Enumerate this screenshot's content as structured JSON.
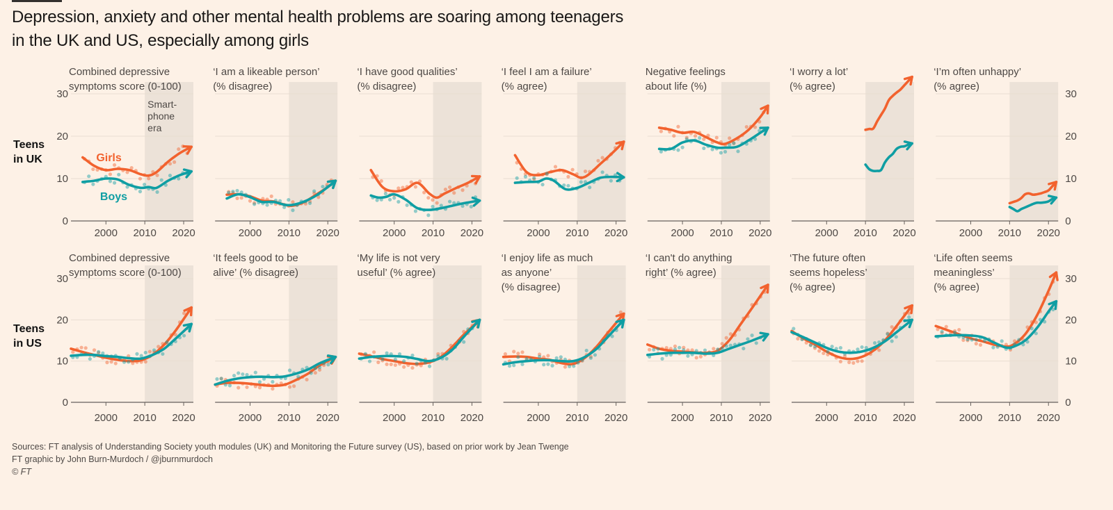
{
  "header": {
    "title": "Depression, anxiety and other mental health problems are soaring among teenagers in the UK and US, especially among girls"
  },
  "rows": [
    {
      "label_line1": "Teens",
      "label_line2": "in UK"
    },
    {
      "label_line1": "Teens",
      "label_line2": "in US"
    }
  ],
  "footer": {
    "sources": "Sources: FT analysis of Understanding Society youth modules (UK) and Monitoring the Future survey (US), based on prior work by Jean Twenge",
    "credit": "FT graphic by John Burn-Murdoch / @jburnmurdoch",
    "copyright": "© FT"
  },
  "colors": {
    "girls": "#F2622E",
    "boys": "#0F9EA3",
    "background": "#FDF1E6",
    "smartphone_era_shade": "#ECE2D8",
    "axis": "#66605C",
    "grid": "#E9DDD1"
  },
  "chart_data": {
    "type": "line",
    "layout": "small-multiples 2 rows x 7 columns",
    "x_ticks": [
      2000,
      2010,
      2020
    ],
    "xlim": [
      1991,
      2022.5
    ],
    "y_ticks": [
      0,
      10,
      20,
      30
    ],
    "ylim": [
      0,
      30
    ],
    "grid": true,
    "shaded_region": {
      "label": "Smart-phone era",
      "label_lines": [
        "Smart-",
        "phone",
        "era"
      ],
      "from": 2010,
      "to": 2022.5
    },
    "series_labels": {
      "girls": "Girls",
      "boys": "Boys"
    },
    "panels": [
      {
        "row": "UK",
        "title_lines": [
          "Combined depressive",
          "symptoms score (0-100)"
        ],
        "girls": {
          "x": [
            1994,
            1997,
            2000,
            2003,
            2006,
            2009,
            2011,
            2013,
            2016,
            2019,
            2022
          ],
          "y": [
            15,
            13,
            12,
            12.3,
            12,
            11,
            10.7,
            11.5,
            14,
            16,
            17.5
          ]
        },
        "boys": {
          "x": [
            1994,
            1997,
            2000,
            2003,
            2006,
            2009,
            2011,
            2013,
            2016,
            2019,
            2022
          ],
          "y": [
            9.2,
            9.5,
            10,
            9.8,
            8.5,
            7.8,
            8,
            7.8,
            9.5,
            10.8,
            11.7
          ]
        }
      },
      {
        "row": "UK",
        "title_lines": [
          "‘I am a likeable person’",
          "(% disagree)"
        ],
        "girls": {
          "x": [
            1994,
            1997,
            2000,
            2003,
            2006,
            2009,
            2011,
            2014,
            2017,
            2020,
            2022
          ],
          "y": [
            6.2,
            6.3,
            5.8,
            4.8,
            4.6,
            3.8,
            3.6,
            4.5,
            6.2,
            8,
            9.5
          ]
        },
        "boys": {
          "x": [
            1994,
            1997,
            2000,
            2003,
            2006,
            2009,
            2011,
            2014,
            2017,
            2020,
            2022
          ],
          "y": [
            5.3,
            6.3,
            5.6,
            4.5,
            4.5,
            3.8,
            3.8,
            4.6,
            6,
            8,
            9.5
          ]
        }
      },
      {
        "row": "UK",
        "title_lines": [
          "‘I have good qualities’",
          "(% disagree)"
        ],
        "girls": {
          "x": [
            1994,
            1997,
            2000,
            2003,
            2006,
            2009,
            2011,
            2013,
            2016,
            2019,
            2022
          ],
          "y": [
            12,
            8,
            7,
            7.5,
            9,
            6.5,
            5.5,
            6.5,
            7.8,
            9,
            10.5
          ]
        },
        "boys": {
          "x": [
            1994,
            1996,
            1998,
            2000,
            2003,
            2006,
            2009,
            2012,
            2015,
            2018,
            2022
          ],
          "y": [
            6,
            5.5,
            5.7,
            6.3,
            5,
            3,
            2.6,
            3,
            3.6,
            4.2,
            4.8
          ]
        }
      },
      {
        "row": "UK",
        "title_lines": [
          "‘I feel I am a failure’",
          "(% agree)"
        ],
        "girls": {
          "x": [
            1994,
            1997,
            2000,
            2003,
            2006,
            2009,
            2011,
            2013,
            2016,
            2019,
            2022
          ],
          "y": [
            15.5,
            11.5,
            10.8,
            11.5,
            12,
            11,
            10.2,
            11,
            13.5,
            16,
            18.7
          ]
        },
        "boys": {
          "x": [
            1994,
            1997,
            2000,
            2002,
            2004,
            2007,
            2010,
            2013,
            2016,
            2019,
            2022
          ],
          "y": [
            9,
            9.2,
            9.3,
            10,
            9.5,
            7.5,
            7.8,
            9,
            10.2,
            10.4,
            10.3
          ]
        }
      },
      {
        "row": "UK",
        "title_lines": [
          "Negative feelings",
          "about life (%)"
        ],
        "girls": {
          "x": [
            1994,
            1997,
            2000,
            2003,
            2006,
            2009,
            2011,
            2014,
            2017,
            2020,
            2022
          ],
          "y": [
            22,
            21.5,
            20.8,
            21,
            19.8,
            18.5,
            18.2,
            19.5,
            21.5,
            24.5,
            27.2
          ]
        },
        "boys": {
          "x": [
            1994,
            1997,
            2000,
            2003,
            2006,
            2009,
            2011,
            2014,
            2017,
            2020,
            2022
          ],
          "y": [
            17,
            17,
            18.5,
            19,
            18,
            17.3,
            17.3,
            17.5,
            19,
            20.8,
            22
          ]
        }
      },
      {
        "row": "UK",
        "title_lines": [
          "‘I worry a lot’",
          "(% agree)"
        ],
        "girls": {
          "x": [
            2010,
            2011,
            2012,
            2013,
            2014,
            2015,
            2016,
            2017,
            2018,
            2019,
            2020,
            2021,
            2022
          ],
          "y": [
            21.5,
            21.7,
            21.8,
            23.5,
            25,
            26.5,
            28.5,
            29.5,
            30.3,
            31,
            32,
            33,
            34
          ]
        },
        "boys": {
          "x": [
            2010,
            2011,
            2012,
            2013,
            2014,
            2015,
            2016,
            2017,
            2018,
            2019,
            2020,
            2021,
            2022
          ],
          "y": [
            13.3,
            12.2,
            11.8,
            11.8,
            12,
            13.8,
            15,
            15.8,
            17,
            17.5,
            17.6,
            18,
            18.3
          ]
        }
      },
      {
        "row": "UK",
        "title_lines": [
          "‘I’m often unhappy’",
          "(% agree)"
        ],
        "girls": {
          "x": [
            2010,
            2011,
            2012,
            2013,
            2014,
            2015,
            2016,
            2017,
            2018,
            2019,
            2020,
            2021,
            2022
          ],
          "y": [
            4.2,
            4.5,
            4.8,
            5.4,
            6.3,
            6.5,
            6.2,
            6.3,
            6.5,
            6.8,
            7.2,
            8.2,
            9.2
          ]
        },
        "boys": {
          "x": [
            2010,
            2011,
            2012,
            2013,
            2014,
            2015,
            2016,
            2017,
            2018,
            2019,
            2020,
            2021,
            2022
          ],
          "y": [
            3.3,
            2.8,
            2.3,
            2.8,
            3.2,
            3.6,
            4,
            4.3,
            4.3,
            4.4,
            4.6,
            5.2,
            5.5
          ]
        }
      },
      {
        "row": "US",
        "title_lines": [
          "Combined depressive",
          "symptoms score (0-100)"
        ],
        "girls": {
          "x": [
            1991,
            1994,
            1997,
            2000,
            2003,
            2006,
            2009,
            2012,
            2015,
            2018,
            2022
          ],
          "y": [
            13,
            12.2,
            11.5,
            10.8,
            10.3,
            10,
            10.2,
            11.5,
            14,
            17.5,
            23
          ]
        },
        "boys": {
          "x": [
            1991,
            1994,
            1997,
            2000,
            2003,
            2006,
            2009,
            2012,
            2015,
            2018,
            2022
          ],
          "y": [
            11.3,
            11.5,
            11.5,
            11.2,
            11,
            10.7,
            10.6,
            11.5,
            13,
            15.5,
            19
          ]
        }
      },
      {
        "row": "US",
        "title_lines": [
          "‘It feels good to be",
          "alive’ (% disagree)"
        ],
        "girls": {
          "x": [
            1991,
            1994,
            1997,
            2000,
            2003,
            2006,
            2009,
            2012,
            2015,
            2018,
            2022
          ],
          "y": [
            4.3,
            4.7,
            4.7,
            4.5,
            4.2,
            4,
            4.3,
            5.5,
            7,
            9,
            11
          ]
        },
        "boys": {
          "x": [
            1991,
            1994,
            1997,
            2000,
            2003,
            2006,
            2009,
            2012,
            2015,
            2018,
            2022
          ],
          "y": [
            4.3,
            5.2,
            5.8,
            6.1,
            6.2,
            6.1,
            6.3,
            7,
            8,
            9.5,
            11
          ]
        }
      },
      {
        "row": "US",
        "title_lines": [
          "‘My life is not very",
          "useful’ (% agree)"
        ],
        "girls": {
          "x": [
            1991,
            1994,
            1997,
            2000,
            2003,
            2006,
            2009,
            2012,
            2015,
            2018,
            2022
          ],
          "y": [
            11.8,
            11.2,
            10.5,
            10,
            9.5,
            9.3,
            9.7,
            11,
            13.5,
            16.5,
            20
          ]
        },
        "boys": {
          "x": [
            1991,
            1994,
            1997,
            2000,
            2003,
            2006,
            2009,
            2012,
            2015,
            2018,
            2022
          ],
          "y": [
            10.6,
            11,
            11.2,
            11.2,
            11,
            10.5,
            10,
            10.8,
            12.8,
            16,
            20
          ]
        }
      },
      {
        "row": "US",
        "title_lines": [
          "‘I enjoy life as much",
          "as anyone’",
          "(% disagree)"
        ],
        "girls": {
          "x": [
            1991,
            1994,
            1997,
            2000,
            2003,
            2006,
            2009,
            2012,
            2015,
            2018,
            2022
          ],
          "y": [
            11,
            11.1,
            11,
            10.6,
            10.3,
            9.5,
            9.3,
            10.8,
            13.5,
            17,
            21.5
          ]
        },
        "boys": {
          "x": [
            1991,
            1994,
            1997,
            2000,
            2003,
            2006,
            2009,
            2012,
            2015,
            2018,
            2022
          ],
          "y": [
            9.2,
            9.7,
            10,
            10.2,
            10.2,
            10,
            10,
            11,
            13,
            16,
            20
          ]
        }
      },
      {
        "row": "US",
        "title_lines": [
          "‘I can't do anything",
          "right’ (% agree)"
        ],
        "girls": {
          "x": [
            1991,
            1994,
            1997,
            2000,
            2003,
            2006,
            2009,
            2012,
            2015,
            2018,
            2022
          ],
          "y": [
            14,
            13,
            12.5,
            12.3,
            12.1,
            12,
            12.5,
            15,
            19,
            23,
            28.5
          ]
        },
        "boys": {
          "x": [
            1991,
            1994,
            1997,
            2000,
            2003,
            2006,
            2009,
            2012,
            2015,
            2018,
            2022
          ],
          "y": [
            11.5,
            11.8,
            12,
            12,
            12,
            11.8,
            12,
            13,
            14,
            15,
            16.5
          ]
        }
      },
      {
        "row": "US",
        "title_lines": [
          "‘The future often",
          "seems hopeless’",
          "(% agree)"
        ],
        "girls": {
          "x": [
            1991,
            1994,
            1997,
            2000,
            2003,
            2006,
            2009,
            2012,
            2015,
            2018,
            2022
          ],
          "y": [
            17.3,
            15.5,
            14,
            12.3,
            11,
            10.5,
            11,
            12.5,
            15,
            18.5,
            23.5
          ]
        },
        "boys": {
          "x": [
            1991,
            1994,
            1997,
            2000,
            2003,
            2006,
            2009,
            2012,
            2015,
            2018,
            2022
          ],
          "y": [
            17,
            15.8,
            14.5,
            13.2,
            12.3,
            12,
            12.3,
            13.2,
            14.8,
            17,
            20
          ]
        }
      },
      {
        "row": "US",
        "title_lines": [
          "‘Life often seems",
          "meaningless’",
          "(% agree)"
        ],
        "girls": {
          "x": [
            1991,
            1994,
            1997,
            2000,
            2003,
            2006,
            2009,
            2011,
            2014,
            2017,
            2020,
            2022
          ],
          "y": [
            18.5,
            17.5,
            16.5,
            15.5,
            14.8,
            14,
            13.5,
            14,
            16.5,
            21,
            27,
            31.5
          ]
        },
        "boys": {
          "x": [
            1991,
            1994,
            1997,
            2000,
            2003,
            2006,
            2009,
            2011,
            2014,
            2017,
            2020,
            2022
          ],
          "y": [
            16,
            16.2,
            16.3,
            16.2,
            15.8,
            14.5,
            13.3,
            13.5,
            15,
            18,
            22,
            24.5
          ]
        }
      }
    ]
  }
}
